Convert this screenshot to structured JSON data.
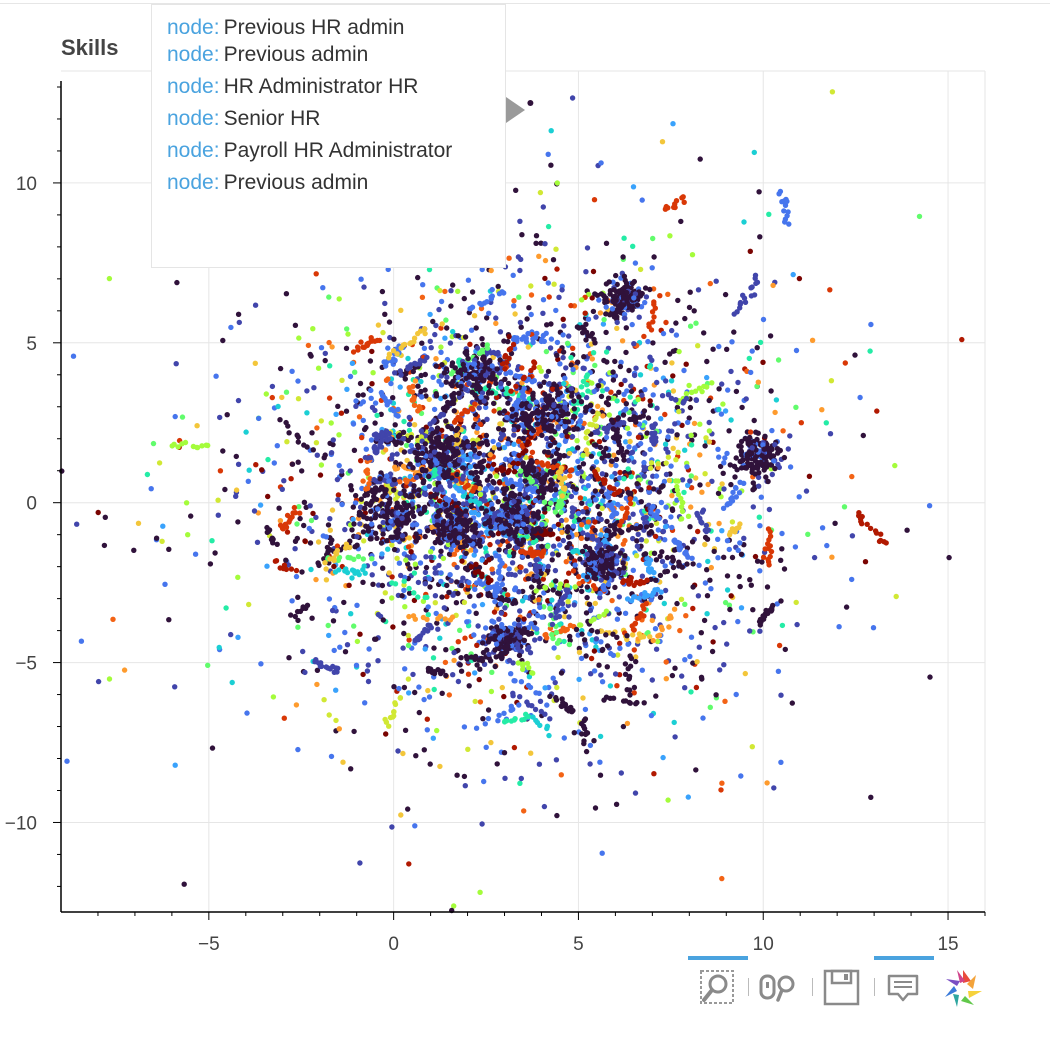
{
  "chart_data": {
    "type": "scatter",
    "title": "Skills",
    "xlim": [
      -9,
      16
    ],
    "ylim": [
      -12.8,
      13.5
    ],
    "x_ticks": [
      -5,
      0,
      5,
      10,
      15
    ],
    "y_ticks": [
      -10,
      -5,
      0,
      5,
      10
    ],
    "x_tick_labels": [
      "−5",
      "0",
      "5",
      "10",
      "15"
    ],
    "y_tick_labels": [
      "−10",
      "−5",
      "0",
      "5",
      "10"
    ],
    "grid": true,
    "legend": "none",
    "palette": [
      "#30123b",
      "#4145ab",
      "#4675ed",
      "#39a2fc",
      "#1bcfd4",
      "#24eca6",
      "#61fc6c",
      "#a4fc3b",
      "#d1e834",
      "#f3c63a",
      "#fe9b2d",
      "#f36315",
      "#d93806",
      "#b11901",
      "#7a0402"
    ],
    "clusters": [
      {
        "x": 0.0,
        "y": -0.4,
        "r": 1.0
      },
      {
        "x": 3.3,
        "y": -0.5,
        "r": 0.8
      },
      {
        "x": 5.6,
        "y": -1.9,
        "r": 0.6
      },
      {
        "x": 1.2,
        "y": 1.5,
        "r": 0.9
      },
      {
        "x": 4.3,
        "y": 2.8,
        "r": 0.9
      },
      {
        "x": 1.6,
        "y": -0.8,
        "r": 0.7
      },
      {
        "x": 6.2,
        "y": 6.4,
        "r": 0.6
      },
      {
        "x": 9.8,
        "y": 1.5,
        "r": 0.7
      },
      {
        "x": 3.1,
        "y": -4.3,
        "r": 0.5
      },
      {
        "x": 2.2,
        "y": 4.0,
        "r": 0.8
      }
    ],
    "highlighted_point": {
      "x": 3.7,
      "y": 12.5
    }
  },
  "tooltip": {
    "rows": [
      {
        "key": "node:",
        "value": "Previous HR admin"
      },
      {
        "key": "node:",
        "value": "Previous admin"
      },
      {
        "key": "node:",
        "value": "HR Administrator HR"
      },
      {
        "key": "node:",
        "value": "Senior HR"
      },
      {
        "key": "node:",
        "value": "Payroll HR Administrator"
      },
      {
        "key": "node:",
        "value": "Previous admin"
      }
    ]
  },
  "toolbar": {
    "tools": [
      "box-zoom-icon",
      "wheel-zoom-icon",
      "save-icon",
      "hover-icon",
      "bokeh-logo-icon"
    ],
    "active_color": "#4aa3df"
  }
}
